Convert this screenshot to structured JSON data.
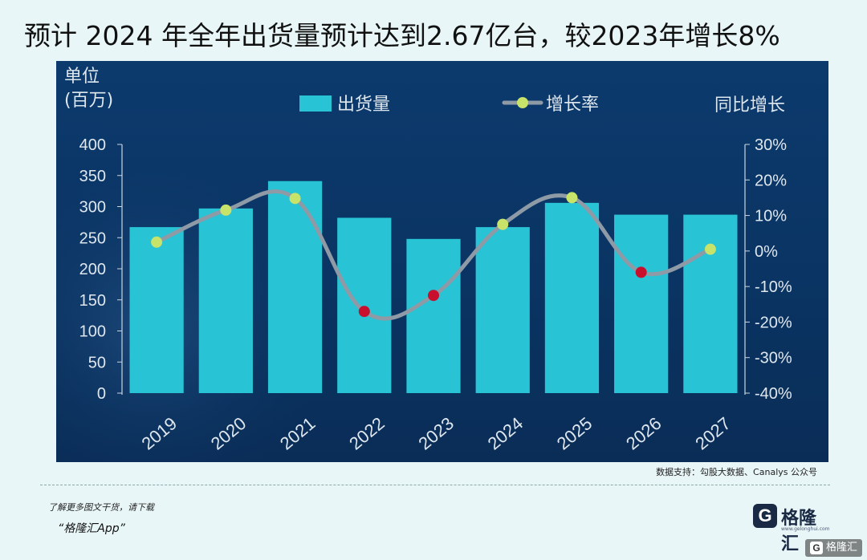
{
  "headline": "预计 2024 年全年出货量预计达到2.67亿台，较2023年增长8%",
  "source_note": "数据支持：勾股大数据、Canalys 公众号",
  "promo": {
    "line1": "了解更多图文干货，请下载",
    "app": "“格隆汇App”"
  },
  "logo": {
    "mark": "G",
    "name": "格隆汇",
    "domain": "www.gelonghui.com"
  },
  "corner_badge": "格隆汇",
  "colors": {
    "bar": "#28c3d4",
    "line": "#8e9aa6",
    "positive_point": "#c7e36a",
    "negative_point": "#c8102e",
    "panel": "#0b3668",
    "axis_text": "#dfe7ee"
  },
  "chart_data": {
    "type": "bar",
    "categories": [
      "2019",
      "2020",
      "2021",
      "2022",
      "2023",
      "2024",
      "2025",
      "2026",
      "2027"
    ],
    "series": [
      {
        "name": "出货量",
        "type": "bar",
        "axis": "left",
        "values": [
          267,
          297,
          341,
          282,
          248,
          267,
          306,
          287,
          287
        ]
      },
      {
        "name": "增长率",
        "type": "line",
        "axis": "right",
        "values": [
          2.5,
          11.5,
          14.8,
          -17.0,
          -12.5,
          7.5,
          15.0,
          -6.0,
          0.5
        ]
      }
    ],
    "y_left": {
      "label": "单位\n(百万)",
      "label_lines": [
        "单位",
        "(百万)"
      ],
      "ylim": [
        0,
        400
      ],
      "ticks": [
        0,
        50,
        100,
        150,
        200,
        250,
        300,
        350,
        400
      ],
      "tick_labels": [
        "0",
        "50",
        "100",
        "150",
        "200",
        "250",
        "300",
        "350",
        "400"
      ]
    },
    "y_right": {
      "label": "同比增长",
      "ylim": [
        -40,
        30
      ],
      "ticks": [
        30,
        20,
        10,
        0,
        -10,
        -20,
        -30,
        -40
      ],
      "tick_labels": [
        "30%",
        "20%",
        "10%",
        "0%",
        "-10%",
        "-20%",
        "-30%",
        "-40%"
      ]
    },
    "legend": {
      "placement": "top-center",
      "entries": [
        "出货量",
        "增长率"
      ]
    },
    "grid": false
  }
}
